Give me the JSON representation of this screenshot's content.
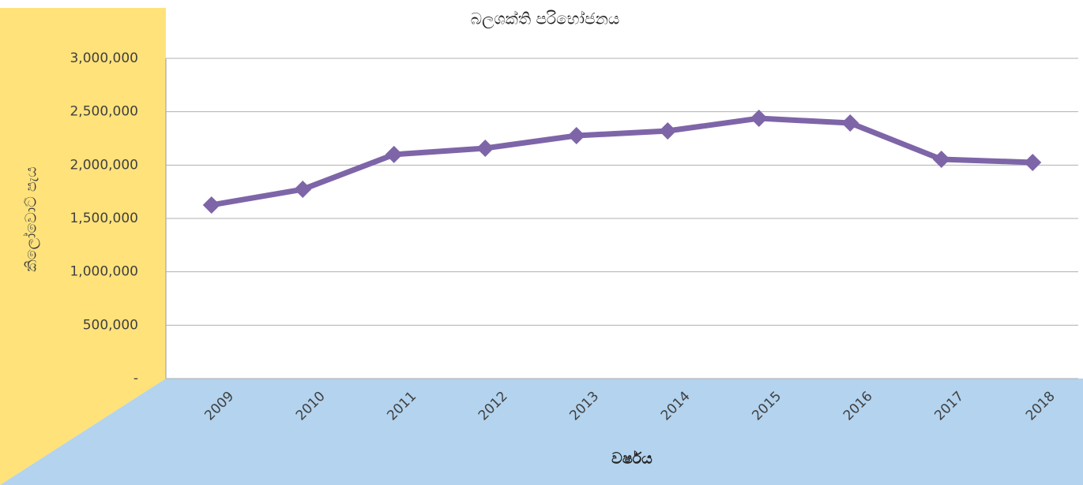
{
  "chart_data": {
    "type": "line",
    "title": "බලශක්ති පරිභෝජනය",
    "x_label": "වර්ෂය",
    "y_label": "කිලෝවොට් පැය",
    "categories": [
      "2009",
      "2010",
      "2011",
      "2012",
      "2013",
      "2014",
      "2015",
      "2016",
      "2017",
      "2018"
    ],
    "series": [
      {
        "name": "බලශක්ති පරිභෝජනය",
        "color": "#7e65a8",
        "values": [
          1626000,
          1773000,
          2099000,
          2158000,
          2276000,
          2320000,
          2438000,
          2394000,
          2054000,
          2025000
        ]
      }
    ],
    "ylim": [
      0,
      3000000
    ],
    "yticks": [
      {
        "value": 0,
        "label": "-"
      },
      {
        "value": 500000,
        "label": "500,000"
      },
      {
        "value": 1000000,
        "label": "1,000,000"
      },
      {
        "value": 1500000,
        "label": "1,500,000"
      },
      {
        "value": 2000000,
        "label": "2,000,000"
      },
      {
        "value": 2500000,
        "label": "2,500,000"
      },
      {
        "value": 3000000,
        "label": "3,000,000"
      }
    ],
    "grid": true
  }
}
